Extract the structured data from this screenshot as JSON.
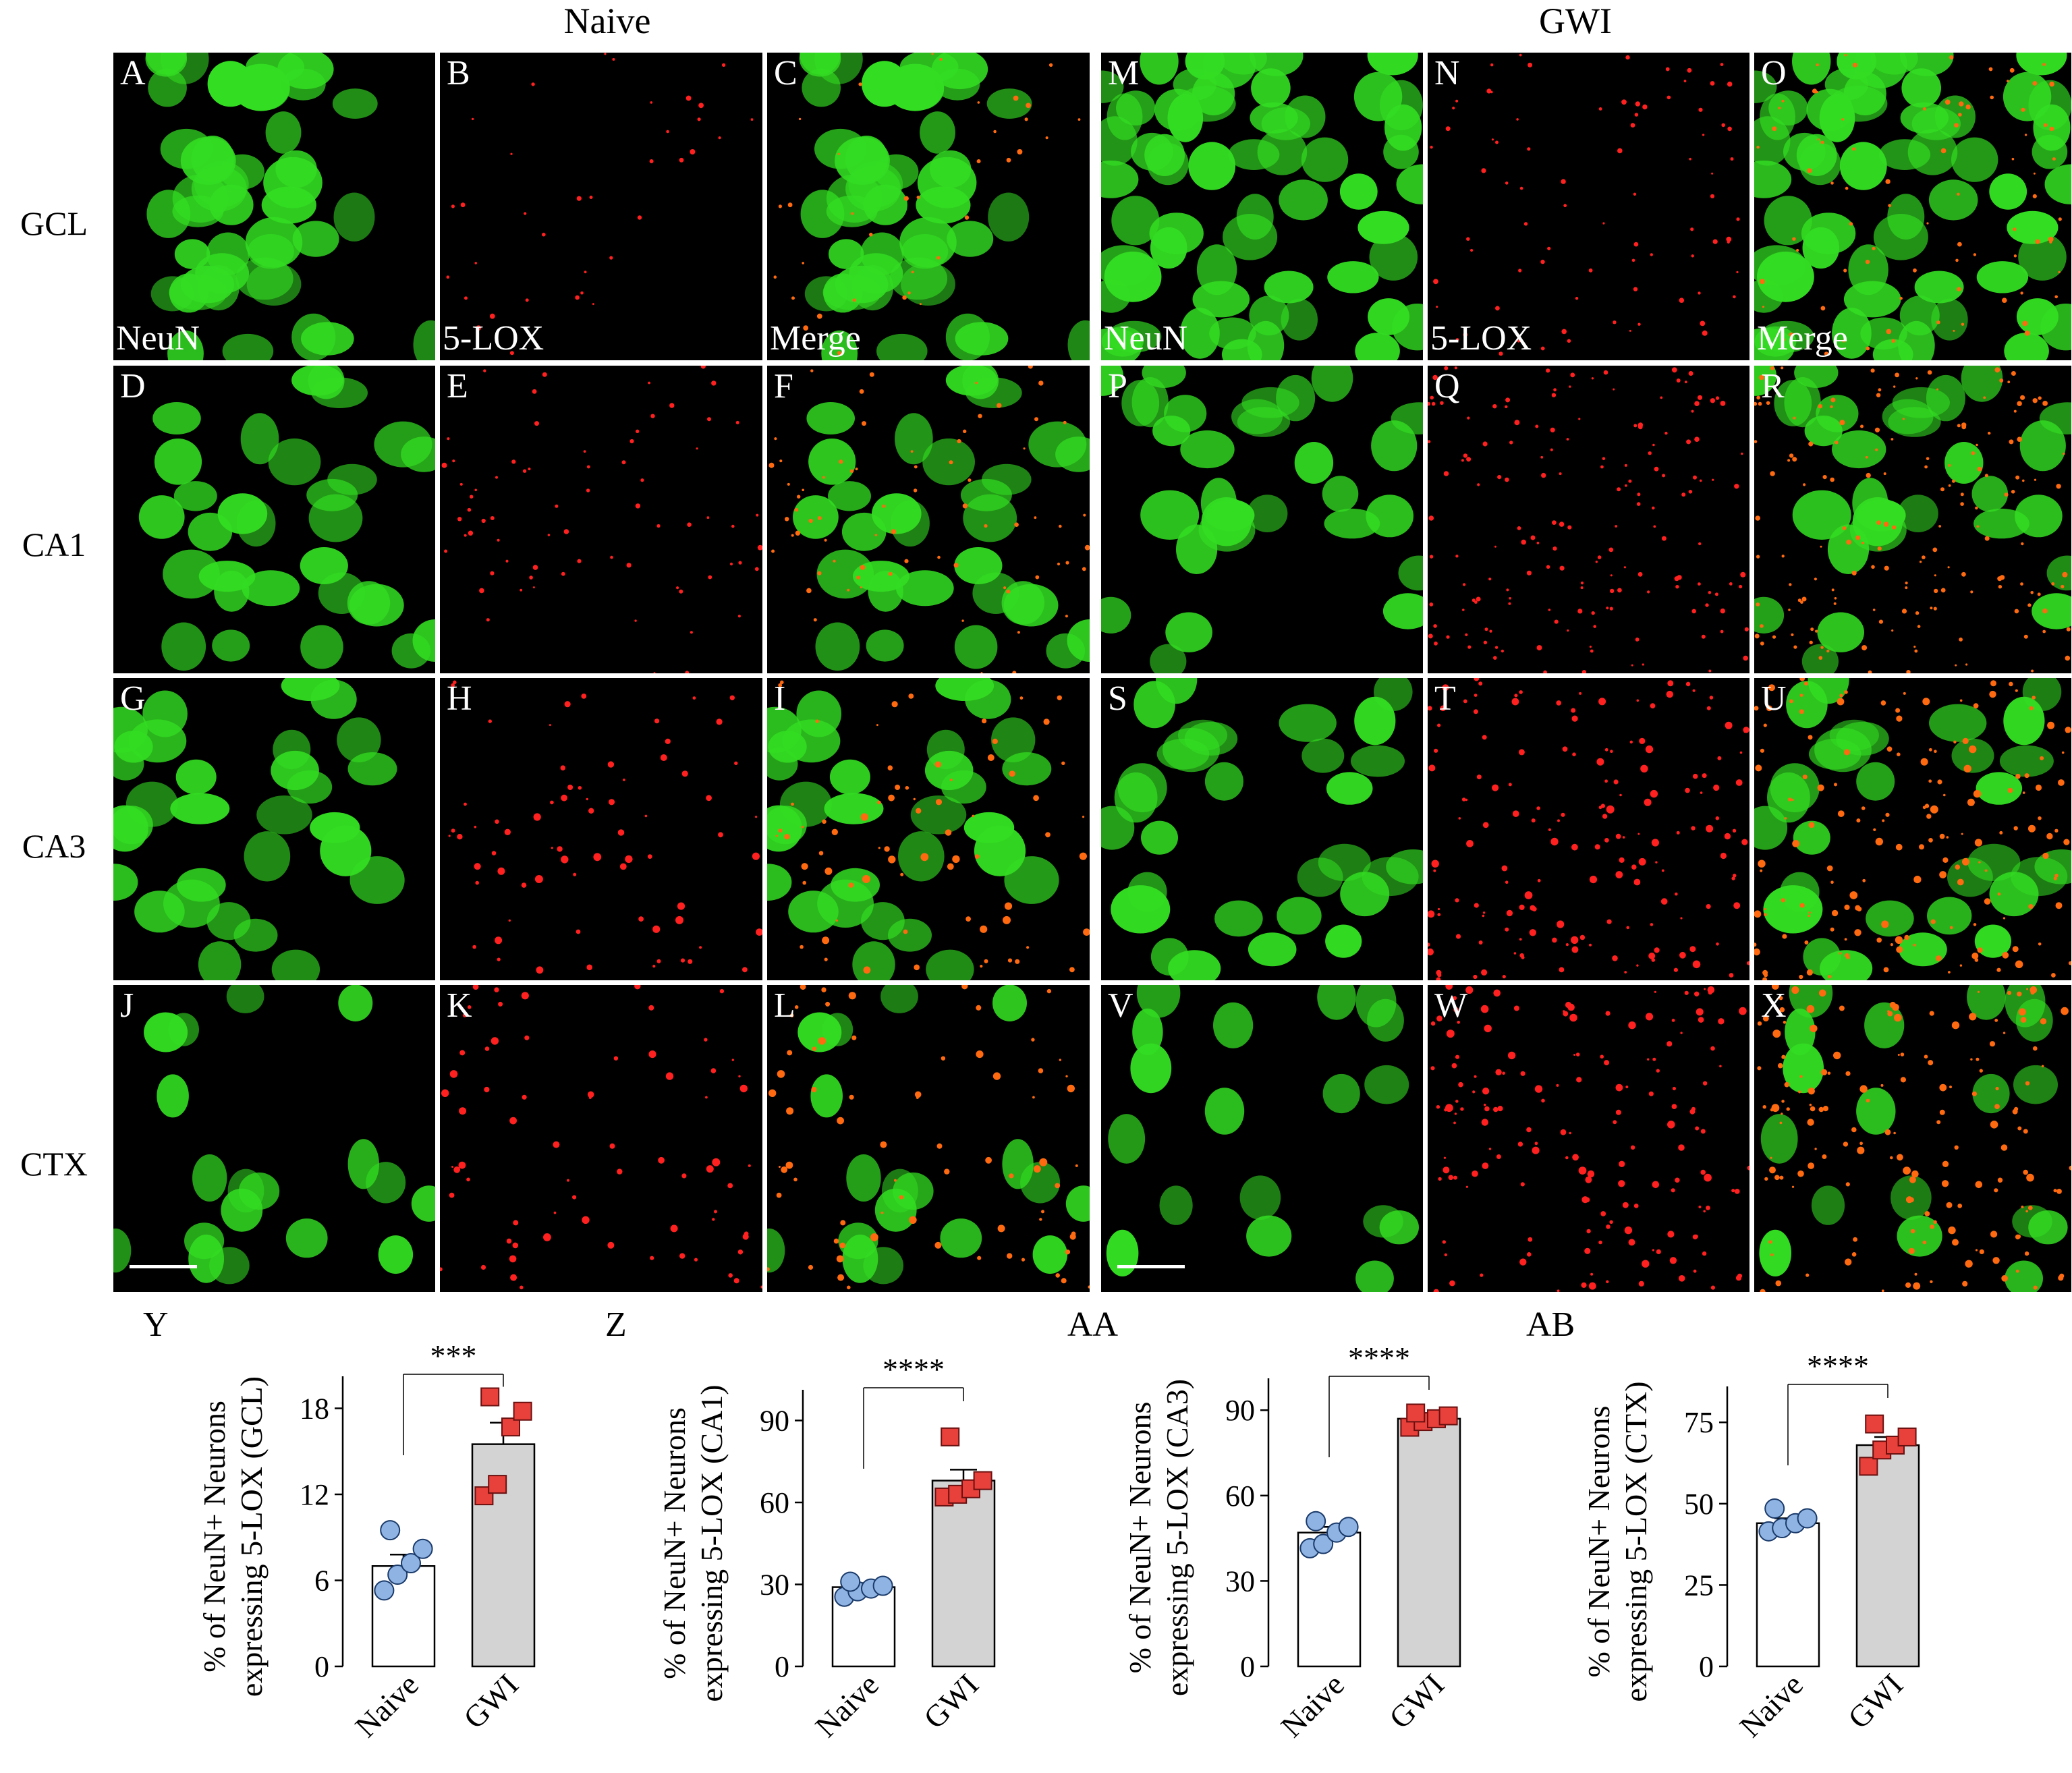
{
  "groups": [
    "Naive",
    "GWI"
  ],
  "rows": [
    "GCL",
    "CA1",
    "CA3",
    "CTX"
  ],
  "panels": [
    {
      "letter": "A",
      "stain": "NeuN",
      "type": "green"
    },
    {
      "letter": "B",
      "stain": "5-LOX",
      "type": "red"
    },
    {
      "letter": "C",
      "stain": "Merge",
      "type": "merge"
    },
    {
      "letter": "M",
      "stain": "NeuN",
      "type": "green"
    },
    {
      "letter": "N",
      "stain": "5-LOX",
      "type": "red"
    },
    {
      "letter": "O",
      "stain": "Merge",
      "type": "merge"
    },
    {
      "letter": "D",
      "stain": "",
      "type": "green"
    },
    {
      "letter": "E",
      "stain": "",
      "type": "red"
    },
    {
      "letter": "F",
      "stain": "",
      "type": "merge"
    },
    {
      "letter": "P",
      "stain": "",
      "type": "green"
    },
    {
      "letter": "Q",
      "stain": "",
      "type": "red"
    },
    {
      "letter": "R",
      "stain": "",
      "type": "merge"
    },
    {
      "letter": "G",
      "stain": "",
      "type": "green"
    },
    {
      "letter": "H",
      "stain": "",
      "type": "red"
    },
    {
      "letter": "I",
      "stain": "",
      "type": "merge"
    },
    {
      "letter": "S",
      "stain": "",
      "type": "green"
    },
    {
      "letter": "T",
      "stain": "",
      "type": "red"
    },
    {
      "letter": "U",
      "stain": "",
      "type": "merge"
    },
    {
      "letter": "J",
      "stain": "",
      "type": "green"
    },
    {
      "letter": "K",
      "stain": "",
      "type": "red"
    },
    {
      "letter": "L",
      "stain": "",
      "type": "merge"
    },
    {
      "letter": "V",
      "stain": "",
      "type": "green"
    },
    {
      "letter": "W",
      "stain": "",
      "type": "red"
    },
    {
      "letter": "X",
      "stain": "",
      "type": "merge"
    }
  ],
  "colors": {
    "neun": "#33dd22",
    "lox": "#ff2020",
    "naive_marker": "#8fb4e3",
    "gwi_marker": "#e8403a",
    "gwi_bar": "#d3d3d3"
  },
  "chart_data": [
    {
      "panel": "Y",
      "type": "bar",
      "categories": [
        "Naive",
        "GWI"
      ],
      "values": [
        7.0,
        15.5
      ],
      "errors": [
        0.8,
        1.5
      ],
      "points": [
        [
          5.3,
          6.4,
          7.2,
          8.2,
          9.5
        ],
        [
          11.9,
          12.7,
          16.7,
          17.8,
          18.8
        ]
      ],
      "ylabel": [
        "% of NeuN+ Neurons",
        "expressing 5-LOX (GCL)"
      ],
      "ylim": [
        0,
        20
      ],
      "yticks": [
        0,
        6,
        12,
        18
      ],
      "significance": "***"
    },
    {
      "panel": "Z",
      "type": "bar",
      "categories": [
        "Naive",
        "GWI"
      ],
      "values": [
        29.0,
        68.0
      ],
      "errors": [
        1.5,
        4.0
      ],
      "points": [
        [
          25.5,
          27.5,
          28.5,
          29.5,
          31.0
        ],
        [
          62.0,
          63.0,
          65.0,
          68.0,
          84.0
        ]
      ],
      "ylabel": [
        "% of NeuN+ Neurons",
        "expressing 5-LOX (CA1)"
      ],
      "ylim": [
        0,
        100
      ],
      "yticks": [
        0,
        30,
        60,
        90
      ],
      "significance": "****"
    },
    {
      "panel": "AA",
      "type": "bar",
      "categories": [
        "Naive",
        "GWI"
      ],
      "values": [
        47.0,
        87.0
      ],
      "errors": [
        2.0,
        1.0
      ],
      "points": [
        [
          41.5,
          43.0,
          47.0,
          49.0,
          51.0
        ],
        [
          84.0,
          86.0,
          87.0,
          88.0,
          89.0
        ]
      ],
      "ylabel": [
        "% of NeuN+ Neurons",
        "expressing 5-LOX (CA3)"
      ],
      "ylim": [
        0,
        100
      ],
      "yticks": [
        0,
        30,
        60,
        90
      ],
      "significance": "****"
    },
    {
      "panel": "AB",
      "type": "bar",
      "categories": [
        "Naive",
        "GWI"
      ],
      "values": [
        44.0,
        68.0
      ],
      "errors": [
        1.5,
        2.5
      ],
      "points": [
        [
          41.5,
          42.5,
          44.0,
          45.5,
          48.5
        ],
        [
          61.5,
          66.5,
          68.0,
          70.5,
          74.5
        ]
      ],
      "ylabel": [
        "% of NeuN+ Neurons",
        "expressing 5-LOX (CTX)"
      ],
      "ylim": [
        0,
        85
      ],
      "yticks": [
        0,
        25,
        50,
        75
      ],
      "significance": "****"
    }
  ]
}
